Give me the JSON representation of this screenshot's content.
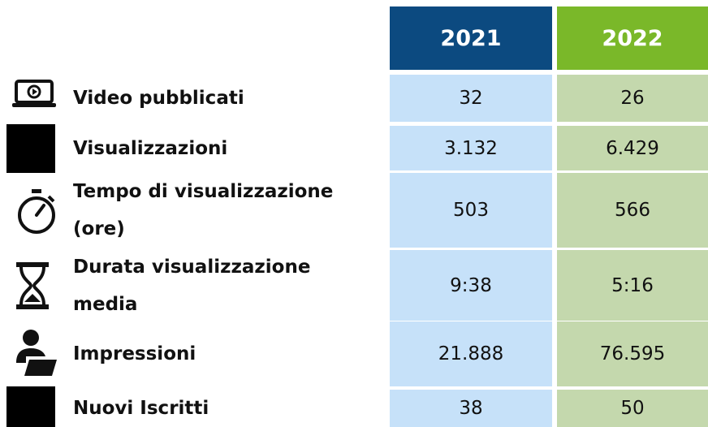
{
  "table": {
    "columns": [
      "2021",
      "2022"
    ],
    "rows": [
      {
        "label": "Video pubblicati",
        "values": [
          "32",
          "26"
        ]
      },
      {
        "label": "Visualizzazioni",
        "values": [
          "3.132",
          "6.429"
        ]
      },
      {
        "label": "Tempo di visualizzazione (ore)",
        "values": [
          "503",
          "566"
        ]
      },
      {
        "label": "Durata visualizzazione media",
        "values": [
          "9:38",
          "5:16"
        ]
      },
      {
        "label": "Impressioni",
        "values": [
          "21.888",
          "76.595"
        ]
      },
      {
        "label": "Nuovi Iscritti",
        "values": [
          "38",
          "50"
        ]
      }
    ]
  }
}
